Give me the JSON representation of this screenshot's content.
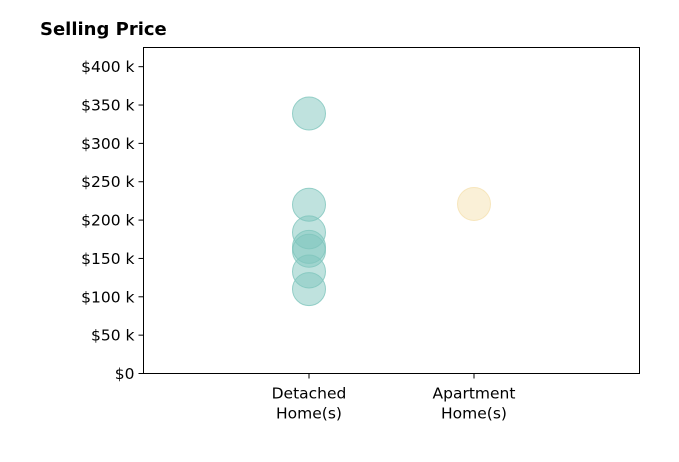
{
  "chart_data": {
    "type": "scatter",
    "title": "Selling Price",
    "xlabel": "",
    "ylabel": "",
    "categories": [
      [
        "Detached",
        "Home(s)"
      ],
      [
        "Apartment",
        "Home(s)"
      ]
    ],
    "ylim": [
      0,
      425000
    ],
    "yticks": [
      {
        "value": 0,
        "label": "$0"
      },
      {
        "value": 50000,
        "label": "$50 k"
      },
      {
        "value": 100000,
        "label": "$100 k"
      },
      {
        "value": 150000,
        "label": "$150 k"
      },
      {
        "value": 200000,
        "label": "$200 k"
      },
      {
        "value": 250000,
        "label": "$250 k"
      },
      {
        "value": 300000,
        "label": "$300 k"
      },
      {
        "value": 350000,
        "label": "$350 k"
      },
      {
        "value": 400000,
        "label": "$400 k"
      }
    ],
    "series": [
      {
        "category": 0,
        "color": "#7fc5bd",
        "values": [
          339000,
          220000,
          184000,
          165000,
          160000,
          133000,
          110000
        ]
      },
      {
        "category": 1,
        "color": "#f5e1b0",
        "values": [
          221000
        ]
      }
    ],
    "grid": false,
    "legend": "none"
  }
}
